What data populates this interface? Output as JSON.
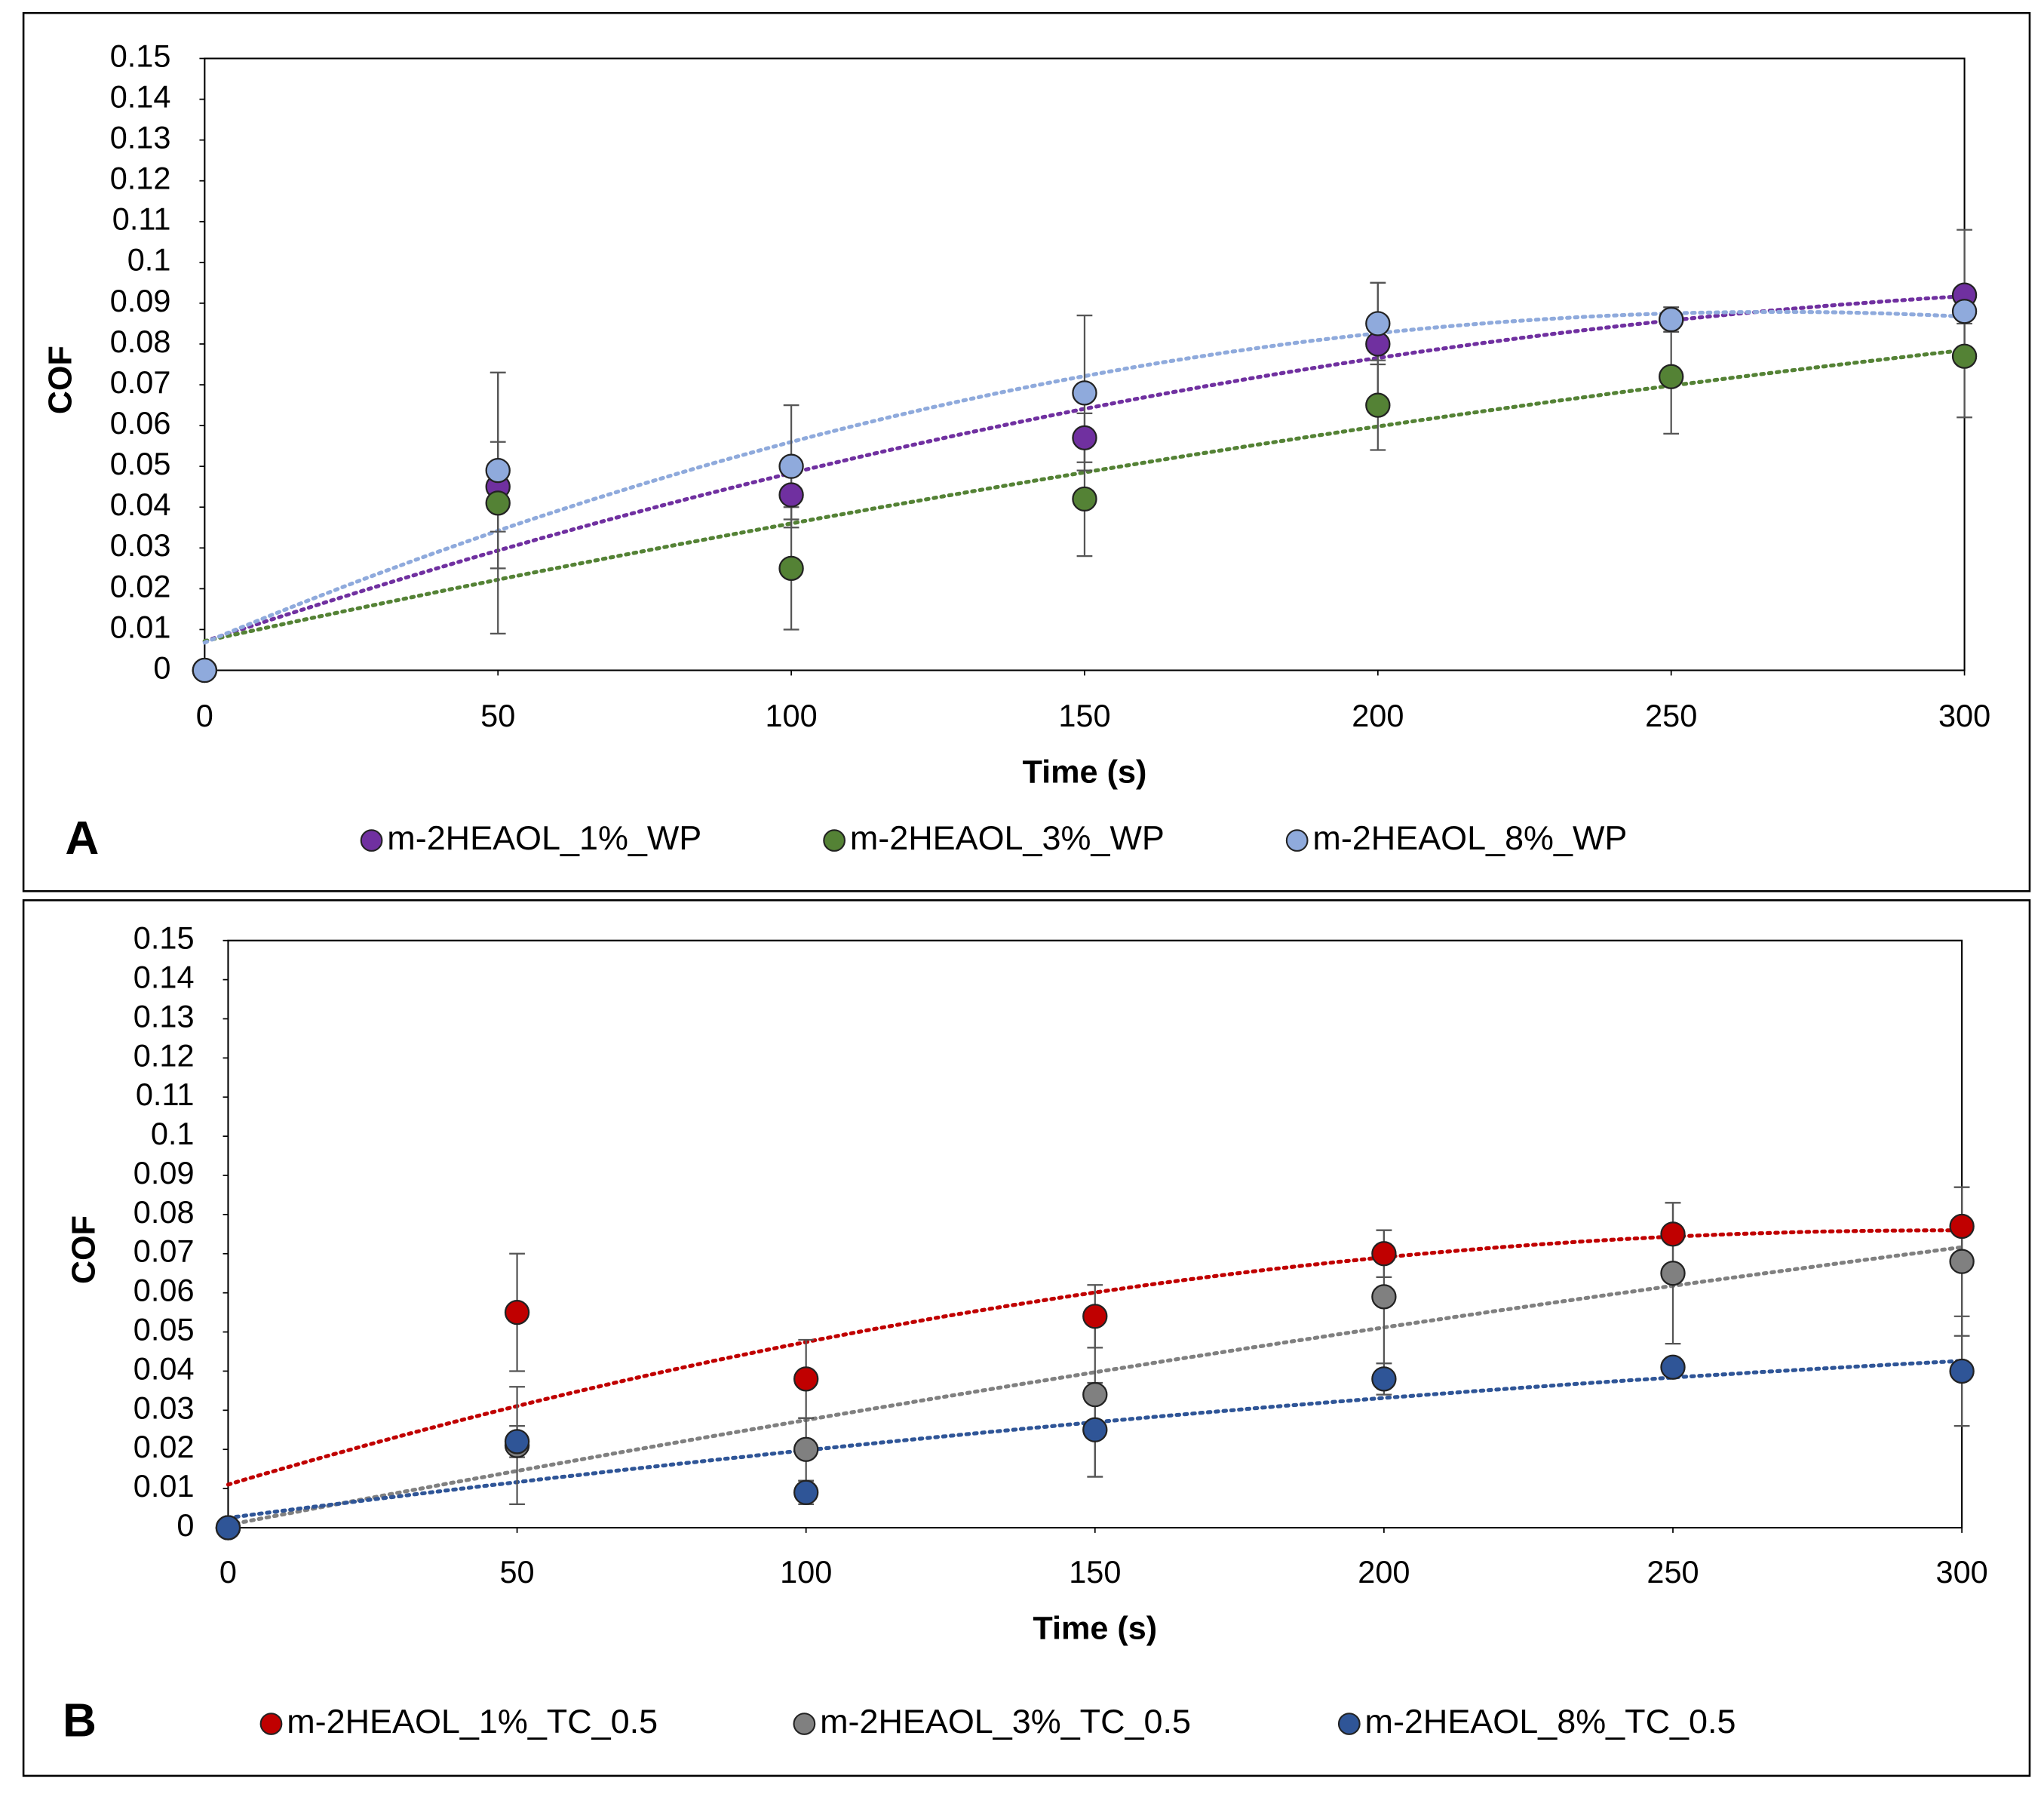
{
  "chart_data": [
    {
      "type": "scatter",
      "panel_label": "A",
      "xlabel": "Time (s)",
      "ylabel": "COF",
      "trendline": "polynomial",
      "x": [
        0,
        50,
        100,
        150,
        200,
        250,
        300
      ],
      "xlim": [
        0,
        300
      ],
      "xticks": [
        0,
        50,
        100,
        150,
        200,
        250,
        300
      ],
      "ylim": [
        0,
        0.15
      ],
      "yticks": [
        0,
        0.01,
        0.02,
        0.03,
        0.04,
        0.05,
        0.06,
        0.07,
        0.08,
        0.09,
        0.1,
        0.11,
        0.12,
        0.13,
        0.14,
        0.15
      ],
      "series": [
        {
          "name": "m-2HEAOL_1%_WP",
          "color": "#7030a0",
          "values": [
            0,
            0.045,
            0.043,
            0.057,
            0.08,
            0.086,
            0.092
          ],
          "errors": [
            0,
            0.011,
            0.006,
            0.006,
            0.015,
            0.003,
            0.016
          ]
        },
        {
          "name": "m-2HEAOL_3%_WP",
          "color": "#548235",
          "values": [
            0,
            0.041,
            0.025,
            0.042,
            0.065,
            0.072,
            0.077
          ],
          "errors": [
            0,
            0.032,
            0.015,
            0.014,
            0.011,
            0.014,
            0.015
          ]
        },
        {
          "name": "m-2HEAOL_8%_WP",
          "color": "#8faadc",
          "values": [
            0,
            0.049,
            0.05,
            0.068,
            0.085,
            0.086,
            0.088
          ],
          "errors": [
            0,
            0.024,
            0.015,
            0.019,
            0.01,
            0.003,
            0.003
          ]
        }
      ]
    },
    {
      "type": "scatter",
      "panel_label": "B",
      "xlabel": "Time (s)",
      "ylabel": "COF",
      "trendline": "polynomial",
      "x": [
        0,
        50,
        100,
        150,
        200,
        250,
        300
      ],
      "xlim": [
        0,
        300
      ],
      "xticks": [
        0,
        50,
        100,
        150,
        200,
        250,
        300
      ],
      "ylim": [
        0,
        0.15
      ],
      "yticks": [
        0,
        0.01,
        0.02,
        0.03,
        0.04,
        0.05,
        0.06,
        0.07,
        0.08,
        0.09,
        0.1,
        0.11,
        0.12,
        0.13,
        0.14,
        0.15
      ],
      "series": [
        {
          "name": "m-2HEAOL_1%_TC_0.5",
          "color": "#c00000",
          "values": [
            0,
            0.055,
            0.038,
            0.054,
            0.07,
            0.075,
            0.077
          ],
          "errors": [
            0,
            0.015,
            0.01,
            0.008,
            0.006,
            0.008,
            0.01
          ]
        },
        {
          "name": "m-2HEAOL_3%_TC_0.5",
          "color": "#808080",
          "values": [
            0,
            0.021,
            0.02,
            0.034,
            0.059,
            0.065,
            0.068
          ],
          "errors": [
            0,
            0.015,
            0.008,
            0.021,
            0.017,
            0.018,
            0.019
          ]
        },
        {
          "name": "m-2HEAOL_8%_TC_0.5",
          "color": "#2f5597",
          "values": [
            0,
            0.022,
            0.009,
            0.025,
            0.038,
            0.041,
            0.04
          ],
          "errors": [
            0,
            0.004,
            0.003,
            0.012,
            0.004,
            0.002,
            0.014
          ]
        }
      ]
    }
  ]
}
